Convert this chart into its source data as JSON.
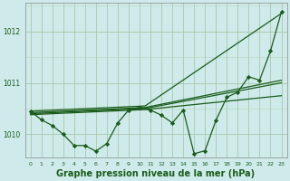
{
  "background_color": "#ceeaea",
  "line_color": "#1a5c1a",
  "marker_color": "#1a5c1a",
  "grid_color_major": "#a8c8a8",
  "grid_color_minor": "#b8d8b8",
  "xlabel": "Graphe pression niveau de la mer (hPa)",
  "xlabel_fontsize": 7,
  "xlim": [
    -0.5,
    23.5
  ],
  "ylim": [
    1009.55,
    1012.55
  ],
  "yticks": [
    1010,
    1011,
    1012
  ],
  "xticks": [
    0,
    1,
    2,
    3,
    4,
    5,
    6,
    7,
    8,
    9,
    10,
    11,
    12,
    13,
    14,
    15,
    16,
    17,
    18,
    19,
    20,
    21,
    22,
    23
  ],
  "trend_lines": [
    [
      [
        0,
        1010.45
      ],
      [
        10.5,
        1010.55
      ],
      [
        23,
        1012.35
      ]
    ],
    [
      [
        0,
        1010.42
      ],
      [
        10.5,
        1010.52
      ],
      [
        23,
        1011.05
      ]
    ],
    [
      [
        0,
        1010.4
      ],
      [
        10.5,
        1010.5
      ],
      [
        23,
        1011.0
      ]
    ],
    [
      [
        0,
        1010.38
      ],
      [
        10.5,
        1010.48
      ],
      [
        23,
        1010.75
      ]
    ]
  ],
  "main_series_x": [
    0,
    1,
    2,
    3,
    4,
    5,
    6,
    7,
    8,
    9,
    10,
    11,
    12,
    13,
    14,
    15,
    16,
    17,
    18,
    19,
    20,
    21,
    22,
    23
  ],
  "main_series_y": [
    1010.45,
    1010.28,
    1010.17,
    1010.0,
    1009.78,
    1009.78,
    1009.67,
    1009.82,
    1010.22,
    1010.47,
    1010.52,
    1010.47,
    1010.37,
    1010.22,
    1010.47,
    1009.62,
    1009.68,
    1010.27,
    1010.72,
    1010.82,
    1011.12,
    1011.05,
    1011.62,
    1012.38
  ]
}
